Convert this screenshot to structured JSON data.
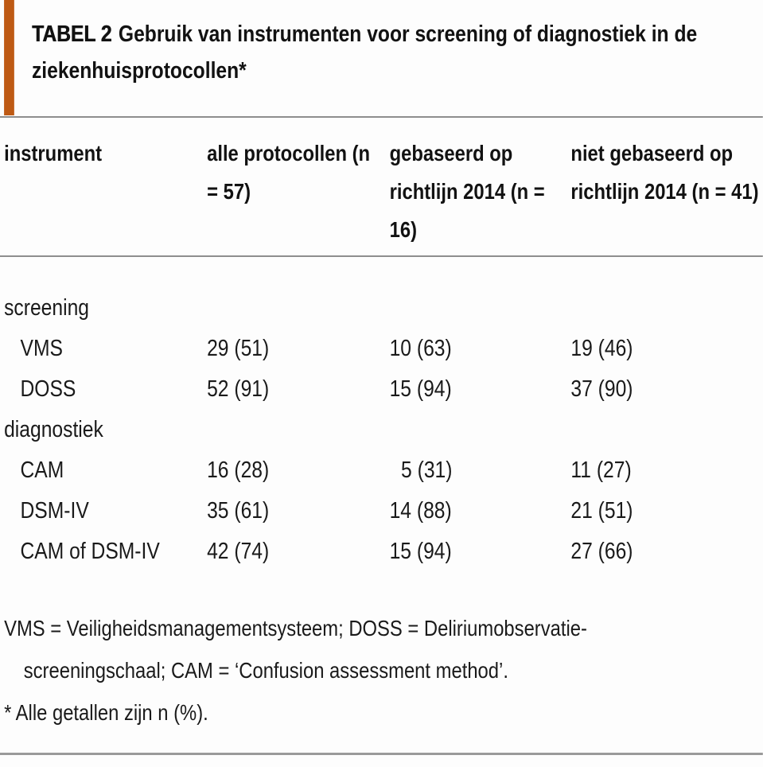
{
  "title": {
    "label": "TABEL 2",
    "text": "Gebruik van instrumenten voor screening of diagnostiek in de ziekenhuisprotocollen*"
  },
  "colors": {
    "accent_bar": "#be5a14",
    "rule": "#8e8e8e",
    "text": "#1a1a1a",
    "background": "#fdfdfd"
  },
  "table": {
    "columns": [
      "instrument",
      "alle protocollen (n = 57)",
      "gebaseerd op richtlijn 2014 (n = 16)",
      "niet gebaseerd op richtlijn 2014 (n = 41)"
    ],
    "sections": [
      {
        "label": "screening",
        "rows": [
          {
            "name": "VMS",
            "values": [
              "29 (51)",
              "10 (63)",
              "19 (46)"
            ]
          },
          {
            "name": "DOSS",
            "values": [
              "52 (91)",
              "15 (94)",
              "37 (90)"
            ]
          }
        ]
      },
      {
        "label": "diagnostiek",
        "rows": [
          {
            "name": "CAM",
            "values": [
              "16 (28)",
              "5 (31)",
              "11 (27)"
            ]
          },
          {
            "name": "DSM-IV",
            "values": [
              "35 (61)",
              "14 (88)",
              "21 (51)"
            ]
          },
          {
            "name": "CAM of DSM-IV",
            "values": [
              "42 (74)",
              "15 (94)",
              "27 (66)"
            ]
          }
        ]
      }
    ]
  },
  "footnotes": [
    "VMS = Veiligheidsmanagementsysteem; DOSS = Deliriumobservatie-screeningschaal; CAM = ‘Confusion assessment method’.",
    "* Alle getallen zijn n (%)."
  ],
  "chart_data": {
    "type": "table",
    "title": "TABEL 2 Gebruik van instrumenten voor screening of diagnostiek in de ziekenhuisprotocollen*",
    "columns": [
      "instrument",
      "alle protocollen (n = 57)",
      "gebaseerd op richtlijn 2014 (n = 16)",
      "niet gebaseerd op richtlijn 2014 (n = 41)"
    ],
    "rows": [
      [
        "screening",
        "",
        "",
        ""
      ],
      [
        "VMS",
        "29 (51)",
        "10 (63)",
        "19 (46)"
      ],
      [
        "DOSS",
        "52 (91)",
        "15 (94)",
        "37 (90)"
      ],
      [
        "diagnostiek",
        "",
        "",
        ""
      ],
      [
        "CAM",
        "16 (28)",
        "5 (31)",
        "11 (27)"
      ],
      [
        "DSM-IV",
        "35 (61)",
        "14 (88)",
        "21 (51)"
      ],
      [
        "CAM of DSM-IV",
        "42 (74)",
        "15 (94)",
        "27 (66)"
      ]
    ]
  }
}
